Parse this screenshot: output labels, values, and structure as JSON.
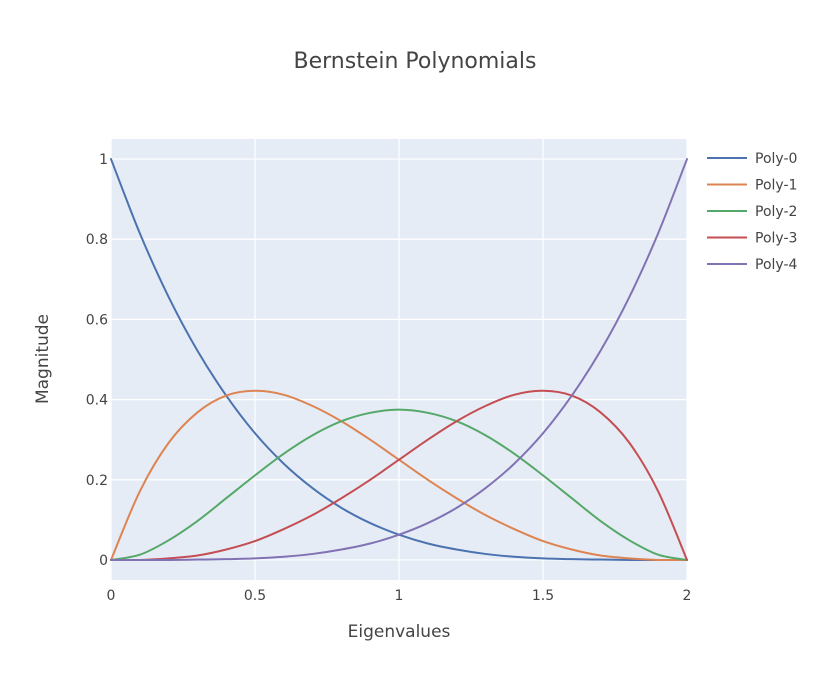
{
  "chart_data": {
    "type": "line",
    "title": "Bernstein Polynomials",
    "xlabel": "Eigenvalues",
    "ylabel": "Magnitude",
    "xlim": [
      0,
      2
    ],
    "ylim": [
      -0.05,
      1.05
    ],
    "x_ticks": [
      0,
      0.5,
      1,
      1.5,
      2
    ],
    "x_tick_labels": [
      "0",
      "0.5",
      "1",
      "1.5",
      "2"
    ],
    "y_ticks": [
      0,
      0.2,
      0.4,
      0.6,
      0.8,
      1
    ],
    "y_tick_labels": [
      "0",
      "0.2",
      "0.4",
      "0.6",
      "0.8",
      "1"
    ],
    "grid": true,
    "legend_position": "top-right",
    "plot_background": "#e5ecf6",
    "x": [
      0,
      0.1,
      0.2,
      0.3,
      0.4,
      0.5,
      0.6,
      0.7,
      0.8,
      0.9,
      1.0,
      1.1,
      1.2,
      1.3,
      1.4,
      1.5,
      1.6,
      1.7,
      1.8,
      1.9,
      2.0
    ],
    "series": [
      {
        "name": "Poly-0",
        "color": "#4c72b0",
        "values": [
          1,
          0.815,
          0.656,
          0.522,
          0.41,
          0.316,
          0.24,
          0.179,
          0.13,
          0.092,
          0.063,
          0.041,
          0.026,
          0.015,
          0.008,
          0.004,
          0.002,
          0.001,
          0,
          0,
          0
        ]
      },
      {
        "name": "Poly-1",
        "color": "#dd8452",
        "values": [
          0,
          0.171,
          0.292,
          0.368,
          0.41,
          0.422,
          0.412,
          0.384,
          0.346,
          0.3,
          0.25,
          0.2,
          0.154,
          0.112,
          0.077,
          0.047,
          0.026,
          0.011,
          0.004,
          0,
          0
        ]
      },
      {
        "name": "Poly-2",
        "color": "#55a868",
        "values": [
          0,
          0.013,
          0.049,
          0.097,
          0.154,
          0.211,
          0.265,
          0.311,
          0.346,
          0.367,
          0.375,
          0.367,
          0.346,
          0.311,
          0.265,
          0.211,
          0.154,
          0.097,
          0.049,
          0.013,
          0
        ]
      },
      {
        "name": "Poly-3",
        "color": "#c44e52",
        "values": [
          0,
          0,
          0.004,
          0.011,
          0.026,
          0.047,
          0.077,
          0.112,
          0.154,
          0.2,
          0.25,
          0.3,
          0.346,
          0.384,
          0.412,
          0.422,
          0.41,
          0.368,
          0.292,
          0.171,
          0
        ]
      },
      {
        "name": "Poly-4",
        "color": "#8172b3",
        "values": [
          0,
          0,
          0,
          0.001,
          0.002,
          0.004,
          0.008,
          0.015,
          0.026,
          0.041,
          0.063,
          0.092,
          0.13,
          0.179,
          0.24,
          0.316,
          0.41,
          0.522,
          0.656,
          0.815,
          1
        ]
      }
    ]
  }
}
